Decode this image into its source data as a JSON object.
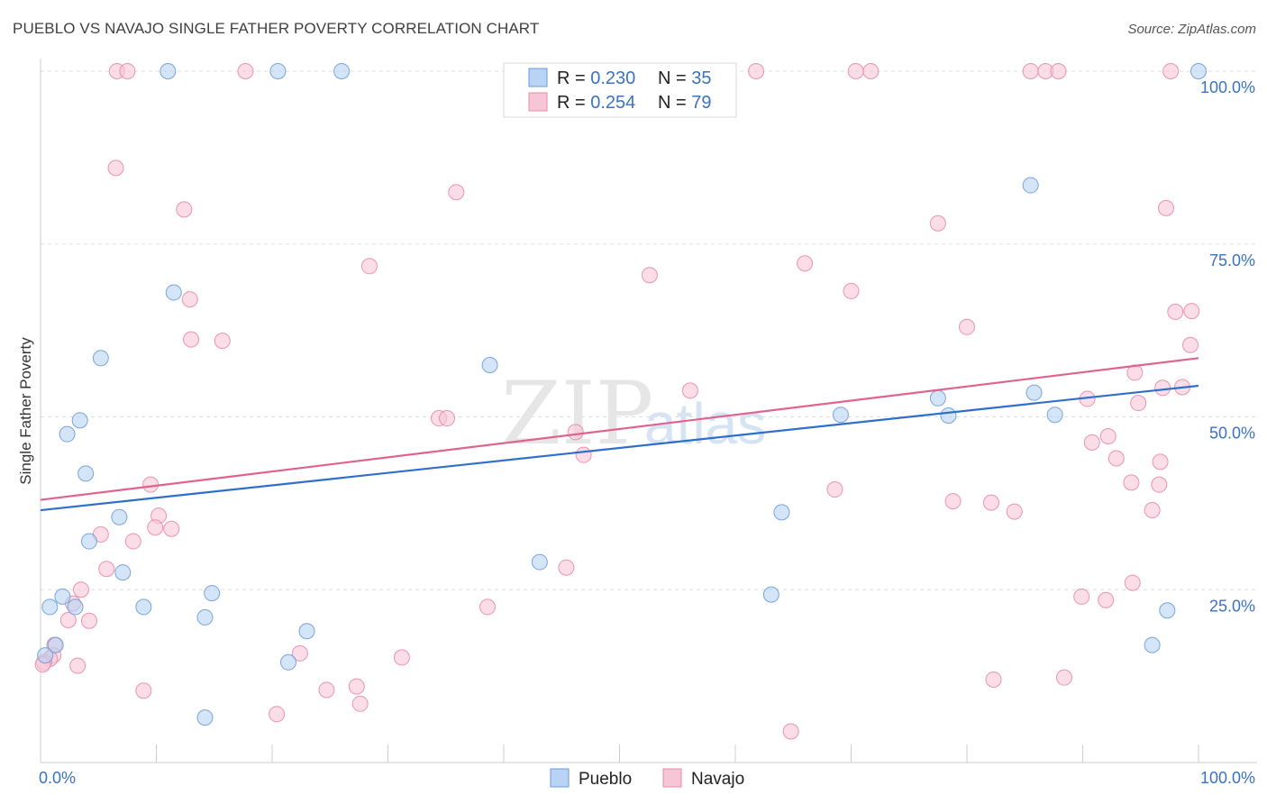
{
  "header": {
    "title": "PUEBLO VS NAVAJO SINGLE FATHER POVERTY CORRELATION CHART",
    "source": "Source: ZipAtlas.com"
  },
  "watermark": {
    "zip": "ZIP",
    "atlas": "atlas"
  },
  "legend": {
    "pueblo": {
      "r_label": "R = ",
      "r_value": "0.230",
      "n_label": "N = ",
      "n_value": "35"
    },
    "navajo": {
      "r_label": "R = ",
      "r_value": "0.254",
      "n_label": "N = ",
      "n_value": "79"
    }
  },
  "bottom_legend": {
    "pueblo": "Pueblo",
    "navajo": "Navajo"
  },
  "chart_data": {
    "type": "scatter",
    "title": "PUEBLO VS NAVAJO SINGLE FATHER POVERTY CORRELATION CHART",
    "xlabel": "",
    "ylabel": "Single Father Poverty",
    "xlim": [
      0,
      100
    ],
    "ylim": [
      0,
      100
    ],
    "x_tick_labels": {
      "min": "0.0%",
      "max": "100.0%"
    },
    "y_ticks": [
      {
        "value": 25,
        "label": "25.0%"
      },
      {
        "value": 50,
        "label": "50.0%"
      },
      {
        "value": 75,
        "label": "75.0%"
      },
      {
        "value": 100,
        "label": "100.0%"
      }
    ],
    "colors": {
      "pueblo_fill": "#b8d3f3",
      "pueblo_stroke": "#6a9bd8",
      "pueblo_line": "#2f6fcc",
      "navajo_fill": "#f7c6d6",
      "navajo_stroke": "#e88aa8",
      "navajo_line": "#e0638f",
      "grid": "#dddddd",
      "axis": "#cccccc"
    },
    "series": [
      {
        "name": "Pueblo",
        "r": 0.23,
        "n": 35,
        "trend": {
          "x0": 0,
          "y0": 36.5,
          "x1": 100,
          "y1": 54.5
        },
        "points": [
          [
            11,
            100
          ],
          [
            20.5,
            100
          ],
          [
            26,
            100
          ],
          [
            100,
            100
          ],
          [
            85.5,
            83.5
          ],
          [
            11.5,
            68
          ],
          [
            5.2,
            58.5
          ],
          [
            38.8,
            57.5
          ],
          [
            3.4,
            49.5
          ],
          [
            2.3,
            47.5
          ],
          [
            3.9,
            41.8
          ],
          [
            6.8,
            35.5
          ],
          [
            4.2,
            32
          ],
          [
            7.1,
            27.5
          ],
          [
            0.8,
            22.5
          ],
          [
            1.9,
            24
          ],
          [
            3.0,
            22.5
          ],
          [
            8.9,
            22.5
          ],
          [
            14.2,
            21
          ],
          [
            14.8,
            24.5
          ],
          [
            23.0,
            19
          ],
          [
            21.4,
            14.5
          ],
          [
            14.2,
            6.5
          ],
          [
            43.1,
            29
          ],
          [
            64.0,
            36.2
          ],
          [
            63.1,
            24.3
          ],
          [
            69.1,
            50.3
          ],
          [
            77.5,
            52.7
          ],
          [
            78.4,
            50.2
          ],
          [
            85.8,
            53.5
          ],
          [
            87.6,
            50.3
          ],
          [
            97.3,
            22
          ],
          [
            96.0,
            17
          ],
          [
            1.3,
            17
          ],
          [
            0.4,
            15.5
          ]
        ]
      },
      {
        "name": "Navajo",
        "r": 0.254,
        "n": 79,
        "trend": {
          "x0": 0,
          "y0": 38,
          "x1": 100,
          "y1": 58.5
        },
        "points": [
          [
            6.6,
            100
          ],
          [
            7.5,
            100
          ],
          [
            17.7,
            100
          ],
          [
            61.8,
            100
          ],
          [
            70.4,
            100
          ],
          [
            71.7,
            100
          ],
          [
            85.5,
            100
          ],
          [
            86.8,
            100
          ],
          [
            87.9,
            100
          ],
          [
            97.6,
            100
          ],
          [
            6.5,
            86
          ],
          [
            35.9,
            82.5
          ],
          [
            12.4,
            80
          ],
          [
            97.2,
            80.2
          ],
          [
            77.5,
            78
          ],
          [
            28.4,
            71.8
          ],
          [
            66.0,
            72.2
          ],
          [
            52.6,
            70.5
          ],
          [
            70.0,
            68.2
          ],
          [
            12.9,
            67
          ],
          [
            13.0,
            61.2
          ],
          [
            15.7,
            61
          ],
          [
            80.0,
            63
          ],
          [
            98.0,
            65.2
          ],
          [
            99.4,
            65.3
          ],
          [
            99.3,
            60.4
          ],
          [
            94.5,
            56.4
          ],
          [
            94.8,
            52
          ],
          [
            96.9,
            54.2
          ],
          [
            98.6,
            54.3
          ],
          [
            90.4,
            52.6
          ],
          [
            92.2,
            47.2
          ],
          [
            92.9,
            44
          ],
          [
            94.2,
            40.5
          ],
          [
            90.8,
            46.3
          ],
          [
            96.7,
            43.5
          ],
          [
            96.6,
            40.2
          ],
          [
            96.0,
            36.5
          ],
          [
            56.1,
            53.8
          ],
          [
            34.4,
            49.8
          ],
          [
            35.1,
            49.8
          ],
          [
            46.2,
            47.8
          ],
          [
            46.9,
            44.5
          ],
          [
            68.6,
            39.5
          ],
          [
            78.8,
            37.8
          ],
          [
            82.1,
            37.6
          ],
          [
            84.1,
            36.3
          ],
          [
            9.5,
            40.2
          ],
          [
            10.2,
            35.7
          ],
          [
            9.9,
            34
          ],
          [
            11.3,
            33.8
          ],
          [
            5.2,
            33
          ],
          [
            8.0,
            32
          ],
          [
            5.7,
            28
          ],
          [
            45.4,
            28.2
          ],
          [
            1.2,
            17
          ],
          [
            2.4,
            20.6
          ],
          [
            3.5,
            25
          ],
          [
            2.8,
            23
          ],
          [
            4.2,
            20.5
          ],
          [
            3.2,
            14
          ],
          [
            1.1,
            15.5
          ],
          [
            0.8,
            15
          ],
          [
            0.3,
            14.5
          ],
          [
            22.4,
            15.8
          ],
          [
            31.2,
            15.2
          ],
          [
            27.3,
            11
          ],
          [
            24.7,
            10.5
          ],
          [
            27.6,
            8.5
          ],
          [
            20.4,
            7
          ],
          [
            8.9,
            10.4
          ],
          [
            38.6,
            22.5
          ],
          [
            89.9,
            24
          ],
          [
            92.0,
            23.5
          ],
          [
            94.3,
            26
          ],
          [
            82.3,
            12
          ],
          [
            88.4,
            12.3
          ],
          [
            64.8,
            4.5
          ],
          [
            0.2,
            14.2
          ]
        ]
      }
    ]
  }
}
